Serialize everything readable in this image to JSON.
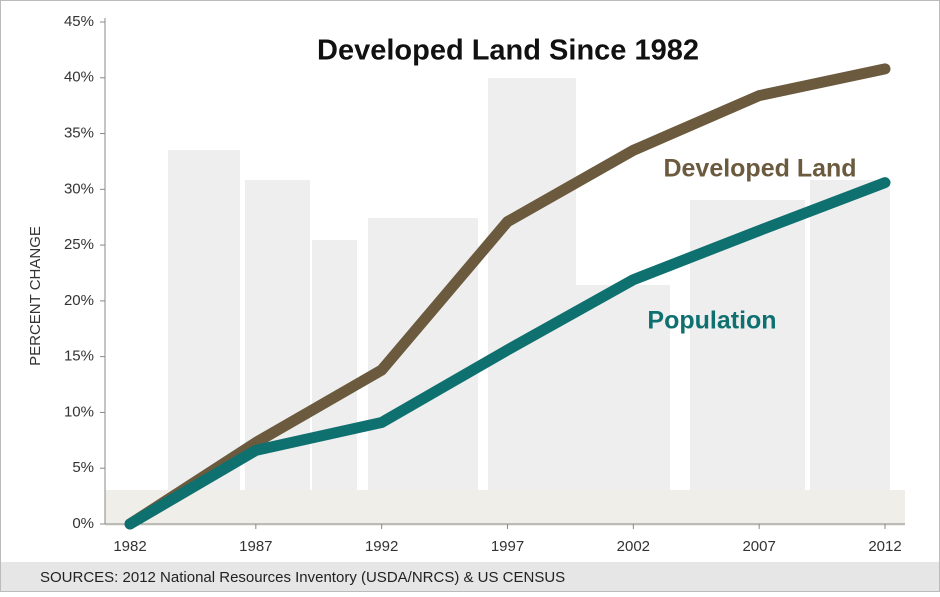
{
  "chart_data": {
    "type": "line",
    "title": "Developed Land Since 1982",
    "y_label": "PERCENT CHANGE",
    "source": "SOURCES: 2012 National Resources Inventory (USDA/NRCS) & US CENSUS",
    "x": [
      1982,
      1987,
      1992,
      1997,
      2002,
      2007,
      2012
    ],
    "series": [
      {
        "name": "Developed Land",
        "color": "#6b5a3e",
        "values": [
          0,
          7.3,
          13.8,
          27.1,
          33.5,
          38.4,
          40.8
        ]
      },
      {
        "name": "Population",
        "color": "#0f7070",
        "values": [
          0,
          6.6,
          9.1,
          15.6,
          21.9,
          26.3,
          30.6
        ]
      }
    ],
    "xlim": [
      1982,
      2012
    ],
    "xticks": [
      1982,
      1987,
      1992,
      1997,
      2002,
      2007,
      2012
    ],
    "ylim": [
      0,
      45
    ],
    "yticks": [
      {
        "value": 0,
        "label": "0%"
      },
      {
        "value": 5,
        "label": "5%"
      },
      {
        "value": 10,
        "label": "10%"
      },
      {
        "value": 15,
        "label": "15%"
      },
      {
        "value": 20,
        "label": "20%"
      },
      {
        "value": 25,
        "label": "25%"
      },
      {
        "value": 30,
        "label": "30%"
      },
      {
        "value": 35,
        "label": "35%"
      },
      {
        "value": 40,
        "label": "40%"
      },
      {
        "value": 45,
        "label": "45%"
      }
    ]
  }
}
